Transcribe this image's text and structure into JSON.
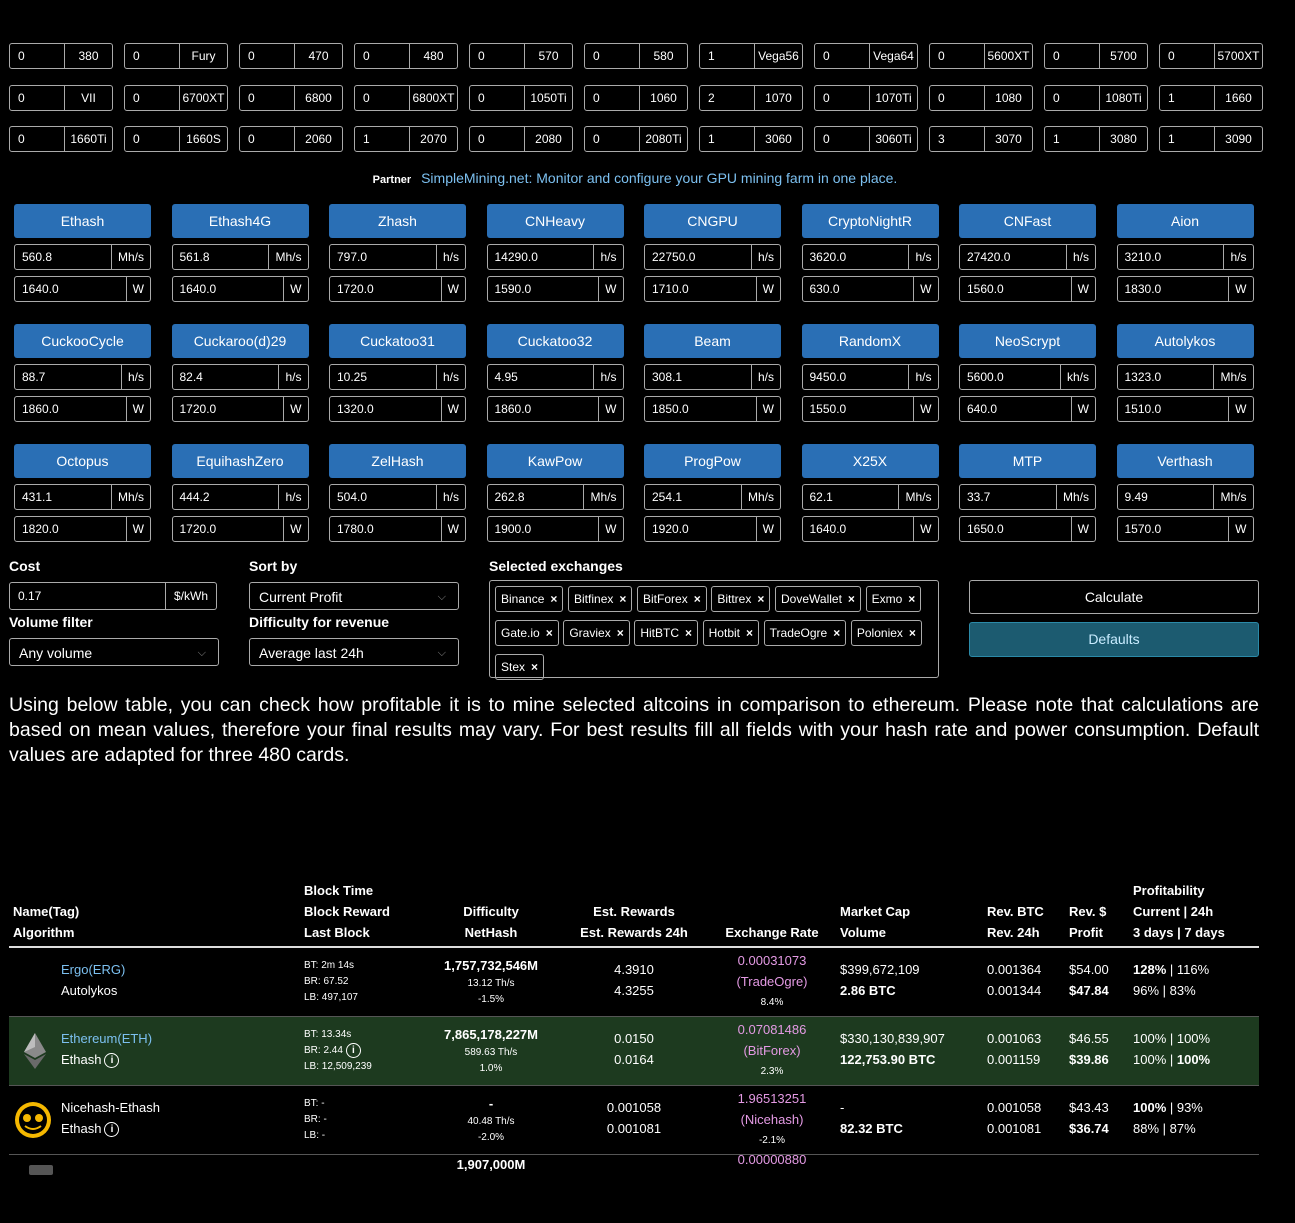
{
  "gpus": [
    [
      {
        "count": "0",
        "name": "380"
      },
      {
        "count": "0",
        "name": "Fury"
      },
      {
        "count": "0",
        "name": "470"
      },
      {
        "count": "0",
        "name": "480"
      },
      {
        "count": "0",
        "name": "570"
      },
      {
        "count": "0",
        "name": "580"
      },
      {
        "count": "1",
        "name": "Vega56"
      },
      {
        "count": "0",
        "name": "Vega64"
      },
      {
        "count": "0",
        "name": "5600XT"
      },
      {
        "count": "0",
        "name": "5700"
      },
      {
        "count": "0",
        "name": "5700XT"
      }
    ],
    [
      {
        "count": "0",
        "name": "VII"
      },
      {
        "count": "0",
        "name": "6700XT"
      },
      {
        "count": "0",
        "name": "6800"
      },
      {
        "count": "0",
        "name": "6800XT"
      },
      {
        "count": "0",
        "name": "1050Ti"
      },
      {
        "count": "0",
        "name": "1060"
      },
      {
        "count": "2",
        "name": "1070"
      },
      {
        "count": "0",
        "name": "1070Ti"
      },
      {
        "count": "0",
        "name": "1080"
      },
      {
        "count": "0",
        "name": "1080Ti"
      },
      {
        "count": "1",
        "name": "1660"
      }
    ],
    [
      {
        "count": "0",
        "name": "1660Ti"
      },
      {
        "count": "0",
        "name": "1660S"
      },
      {
        "count": "0",
        "name": "2060"
      },
      {
        "count": "1",
        "name": "2070"
      },
      {
        "count": "0",
        "name": "2080"
      },
      {
        "count": "0",
        "name": "2080Ti"
      },
      {
        "count": "1",
        "name": "3060"
      },
      {
        "count": "0",
        "name": "3060Ti"
      },
      {
        "count": "3",
        "name": "3070"
      },
      {
        "count": "1",
        "name": "3080"
      },
      {
        "count": "1",
        "name": "3090"
      }
    ]
  ],
  "partner": {
    "label": "Partner",
    "text": "SimpleMining.net: Monitor and configure your GPU mining farm in one place."
  },
  "algorithms": [
    {
      "name": "Ethash",
      "hashrate": "560.8",
      "unit": "Mh/s",
      "power": "1640.0",
      "power_unit": "W"
    },
    {
      "name": "Ethash4G",
      "hashrate": "561.8",
      "unit": "Mh/s",
      "power": "1640.0",
      "power_unit": "W"
    },
    {
      "name": "Zhash",
      "hashrate": "797.0",
      "unit": "h/s",
      "power": "1720.0",
      "power_unit": "W"
    },
    {
      "name": "CNHeavy",
      "hashrate": "14290.0",
      "unit": "h/s",
      "power": "1590.0",
      "power_unit": "W"
    },
    {
      "name": "CNGPU",
      "hashrate": "22750.0",
      "unit": "h/s",
      "power": "1710.0",
      "power_unit": "W"
    },
    {
      "name": "CryptoNightR",
      "hashrate": "3620.0",
      "unit": "h/s",
      "power": "630.0",
      "power_unit": "W"
    },
    {
      "name": "CNFast",
      "hashrate": "27420.0",
      "unit": "h/s",
      "power": "1560.0",
      "power_unit": "W"
    },
    {
      "name": "Aion",
      "hashrate": "3210.0",
      "unit": "h/s",
      "power": "1830.0",
      "power_unit": "W"
    },
    {
      "name": "CuckooCycle",
      "hashrate": "88.7",
      "unit": "h/s",
      "power": "1860.0",
      "power_unit": "W"
    },
    {
      "name": "Cuckaroo(d)29",
      "hashrate": "82.4",
      "unit": "h/s",
      "power": "1720.0",
      "power_unit": "W"
    },
    {
      "name": "Cuckatoo31",
      "hashrate": "10.25",
      "unit": "h/s",
      "power": "1320.0",
      "power_unit": "W"
    },
    {
      "name": "Cuckatoo32",
      "hashrate": "4.95",
      "unit": "h/s",
      "power": "1860.0",
      "power_unit": "W"
    },
    {
      "name": "Beam",
      "hashrate": "308.1",
      "unit": "h/s",
      "power": "1850.0",
      "power_unit": "W"
    },
    {
      "name": "RandomX",
      "hashrate": "9450.0",
      "unit": "h/s",
      "power": "1550.0",
      "power_unit": "W"
    },
    {
      "name": "NeoScrypt",
      "hashrate": "5600.0",
      "unit": "kh/s",
      "power": "640.0",
      "power_unit": "W"
    },
    {
      "name": "Autolykos",
      "hashrate": "1323.0",
      "unit": "Mh/s",
      "power": "1510.0",
      "power_unit": "W"
    },
    {
      "name": "Octopus",
      "hashrate": "431.1",
      "unit": "Mh/s",
      "power": "1820.0",
      "power_unit": "W"
    },
    {
      "name": "EquihashZero",
      "hashrate": "444.2",
      "unit": "h/s",
      "power": "1720.0",
      "power_unit": "W"
    },
    {
      "name": "ZelHash",
      "hashrate": "504.0",
      "unit": "h/s",
      "power": "1780.0",
      "power_unit": "W"
    },
    {
      "name": "KawPow",
      "hashrate": "262.8",
      "unit": "Mh/s",
      "power": "1900.0",
      "power_unit": "W"
    },
    {
      "name": "ProgPow",
      "hashrate": "254.1",
      "unit": "Mh/s",
      "power": "1920.0",
      "power_unit": "W"
    },
    {
      "name": "X25X",
      "hashrate": "62.1",
      "unit": "Mh/s",
      "power": "1640.0",
      "power_unit": "W"
    },
    {
      "name": "MTP",
      "hashrate": "33.7",
      "unit": "Mh/s",
      "power": "1650.0",
      "power_unit": "W"
    },
    {
      "name": "Verthash",
      "hashrate": "9.49",
      "unit": "Mh/s",
      "power": "1570.0",
      "power_unit": "W"
    }
  ],
  "controls": {
    "cost_label": "Cost",
    "cost_value": "0.17",
    "cost_unit": "$/kWh",
    "sort_label": "Sort by",
    "sort_value": "Current Profit",
    "volume_label": "Volume filter",
    "volume_value": "Any volume",
    "difficulty_label": "Difficulty for revenue",
    "difficulty_value": "Average last 24h",
    "exchanges_label": "Selected exchanges",
    "exchanges": [
      "Binance",
      "Bitfinex",
      "BitForex",
      "Bittrex",
      "DoveWallet",
      "Exmo",
      "Gate.io",
      "Graviex",
      "HitBTC",
      "Hotbit",
      "TradeOgre",
      "Poloniex",
      "Stex"
    ],
    "calculate": "Calculate",
    "defaults": "Defaults"
  },
  "intro": "Using below table, you can check how profitable it is to mine selected altcoins in comparison to ethereum. Please note that calculations are based on mean values, therefore your final results may vary. For best results fill all fields with your hash rate and power consumption. Default values are adapted for three 480 cards.",
  "table": {
    "headers": {
      "name": "Name(Tag)",
      "algo": "Algorithm",
      "bt": "Block Time",
      "br": "Block Reward",
      "lb": "Last Block",
      "diff": "Difficulty",
      "nethash": "NetHash",
      "est": "Est. Rewards",
      "est24": "Est. Rewards 24h",
      "rate": "Exchange Rate",
      "mcap": "Market Cap",
      "vol": "Volume",
      "revbtc": "Rev. BTC",
      "rev24": "Rev. 24h",
      "revusd": "Rev. $",
      "profit": "Profit",
      "prof": "Profitability",
      "prof_cur": "Current | 24h",
      "prof_3d": "3 days | 7 days"
    },
    "rows": [
      {
        "name": "Ergo(ERG)",
        "algo": "Autolykos",
        "bt": "BT: 2m 14s",
        "br": "BR: 67.52",
        "lb": "LB: 497,107",
        "diff": "1,757,732,546M",
        "nethash": "13.12 Th/s",
        "diff_change": "-1.5%",
        "est": "4.3910",
        "est24": "4.3255",
        "rate": "0.00031073",
        "rate_ex": "(TradeOgre)",
        "rate_change": "8.4%",
        "mcap": "$399,672,109",
        "vol": "2.86 BTC",
        "revbtc": "0.001364",
        "rev24": "0.001344",
        "revusd": "$54.00",
        "profit": "$47.84",
        "prof_cur": "128%",
        "prof_24": " | 116%",
        "prof_3d": "96% | 83%"
      },
      {
        "name": "Ethereum(ETH)",
        "algo": "Ethash",
        "bt": "BT: 13.34s",
        "br": "BR: 2.44",
        "lb": "LB: 12,509,239",
        "diff": "7,865,178,227M",
        "nethash": "589.63 Th/s",
        "diff_change": "1.0%",
        "est": "0.0150",
        "est24": "0.0164",
        "rate": "0.07081486",
        "rate_ex": "(BitForex)",
        "rate_change": "2.3%",
        "mcap": "$330,130,839,907",
        "vol": "122,753.90 BTC",
        "revbtc": "0.001063",
        "rev24": "0.001159",
        "revusd": "$46.55",
        "profit": "$39.86",
        "prof_cur": "100% | 100%",
        "prof_24": "",
        "prof_3d_a": "100% | ",
        "prof_3d_b": "100%"
      },
      {
        "name": "Nicehash-Ethash",
        "algo": "Ethash",
        "bt": "BT: -",
        "br": "BR: -",
        "lb": "LB: -",
        "diff": "-",
        "nethash": "40.48 Th/s",
        "diff_change": "-2.0%",
        "est": "0.001058",
        "est24": "0.001081",
        "rate": "1.96513251",
        "rate_ex": "(Nicehash)",
        "rate_change": "-2.1%",
        "mcap": "-",
        "vol": "82.32 BTC",
        "revbtc": "0.001058",
        "rev24": "0.001081",
        "revusd": "$43.43",
        "profit": "$36.74",
        "prof_cur": "100%",
        "prof_24": " | 93%",
        "prof_3d": "88% | 87%"
      }
    ],
    "partial": {
      "diff": "1,907,000M",
      "rate": "0.00000880"
    }
  },
  "colors": {
    "accent": "#2a6fb5",
    "link": "#7cc0f0",
    "rate": "#e49ae4",
    "highlight_row": "#1d3a1f",
    "defaults_btn": "#1c5b70"
  }
}
